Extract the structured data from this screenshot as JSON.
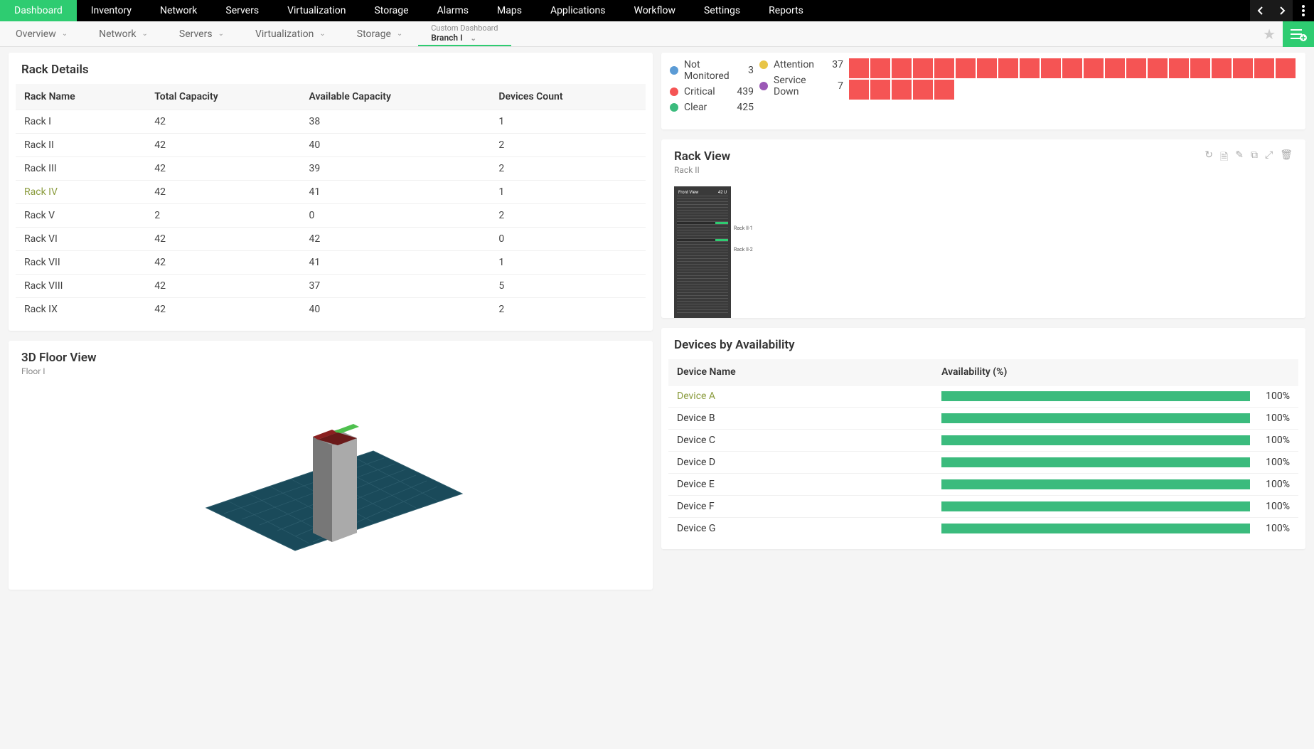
{
  "colors": {
    "accent": "#2ecc71",
    "topnav_bg": "#000000",
    "heat_critical": "#f55454",
    "bar_green": "#3bbb7d",
    "highlight_text": "#8b9c3e"
  },
  "topnav": {
    "items": [
      {
        "label": "Dashboard",
        "active": true
      },
      {
        "label": "Inventory"
      },
      {
        "label": "Network"
      },
      {
        "label": "Servers"
      },
      {
        "label": "Virtualization"
      },
      {
        "label": "Storage"
      },
      {
        "label": "Alarms"
      },
      {
        "label": "Maps"
      },
      {
        "label": "Applications"
      },
      {
        "label": "Workflow"
      },
      {
        "label": "Settings"
      },
      {
        "label": "Reports"
      }
    ]
  },
  "subnav": {
    "items": [
      {
        "label": "Overview"
      },
      {
        "label": "Network"
      },
      {
        "label": "Servers"
      },
      {
        "label": "Virtualization"
      },
      {
        "label": "Storage"
      }
    ],
    "custom": {
      "line1": "Custom Dashboard",
      "line2": "Branch I"
    }
  },
  "rack_details": {
    "title": "Rack Details",
    "columns": [
      "Rack Name",
      "Total Capacity",
      "Available Capacity",
      "Devices Count"
    ],
    "rows": [
      {
        "name": "Rack I",
        "total": "42",
        "avail": "38",
        "count": "1"
      },
      {
        "name": "Rack II",
        "total": "42",
        "avail": "40",
        "count": "2"
      },
      {
        "name": "Rack III",
        "total": "42",
        "avail": "39",
        "count": "2"
      },
      {
        "name": "Rack IV",
        "total": "42",
        "avail": "41",
        "count": "1",
        "highlight": true
      },
      {
        "name": "Rack V",
        "total": "2",
        "avail": "0",
        "count": "2"
      },
      {
        "name": "Rack VI",
        "total": "42",
        "avail": "42",
        "count": "0"
      },
      {
        "name": "Rack VII",
        "total": "42",
        "avail": "41",
        "count": "1"
      },
      {
        "name": "Rack VIII",
        "total": "42",
        "avail": "37",
        "count": "5"
      },
      {
        "name": "Rack IX",
        "total": "42",
        "avail": "40",
        "count": "2"
      }
    ]
  },
  "floor_view": {
    "title": "3D Floor View",
    "subtitle": "Floor I",
    "floor_color": "#1a4a5a",
    "grid_color": "#3a6a7a",
    "rack_colors": {
      "top1": "#8b2020",
      "top2": "#4ec04e",
      "body": "#9a9a9a"
    }
  },
  "status_legend": {
    "left": [
      {
        "label": "Not Monitored",
        "count": "3",
        "color": "#5b9bd5"
      },
      {
        "label": "Critical",
        "count": "439",
        "color": "#f55454"
      },
      {
        "label": "Clear",
        "count": "425",
        "color": "#3bbb7d"
      }
    ],
    "right": [
      {
        "label": "Attention",
        "count": "37",
        "color": "#e8c547"
      },
      {
        "label": "Service Down",
        "count": "7",
        "color": "#9b59b6"
      }
    ],
    "heatmap": {
      "cells": 26,
      "color": "#f55454"
    }
  },
  "rack_view": {
    "title": "Rack View",
    "subtitle": "Rack II",
    "diagram": {
      "header_left": "Front View",
      "header_right": "42 U",
      "total_u": 42,
      "devices": [
        {
          "u": 10,
          "label": "Rack II-1"
        },
        {
          "u": 16,
          "label": "Rack II-2"
        }
      ]
    }
  },
  "devices_avail": {
    "title": "Devices by Availability",
    "columns": [
      "Device Name",
      "Availability (%)"
    ],
    "rows": [
      {
        "name": "Device A",
        "pct": "100%",
        "bar": 100,
        "highlight": true
      },
      {
        "name": "Device B",
        "pct": "100%",
        "bar": 100
      },
      {
        "name": "Device C",
        "pct": "100%",
        "bar": 100
      },
      {
        "name": "Device D",
        "pct": "100%",
        "bar": 100
      },
      {
        "name": "Device E",
        "pct": "100%",
        "bar": 100
      },
      {
        "name": "Device F",
        "pct": "100%",
        "bar": 100
      },
      {
        "name": "Device G",
        "pct": "100%",
        "bar": 100
      }
    ]
  }
}
